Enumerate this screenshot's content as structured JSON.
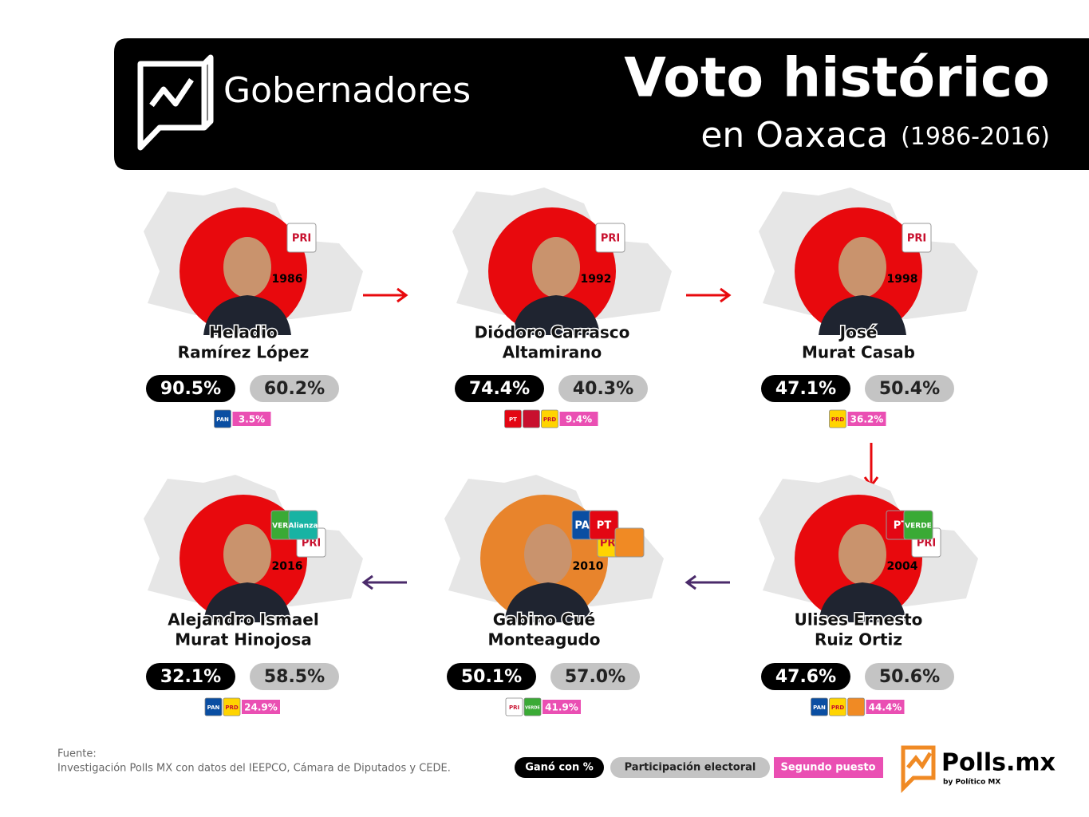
{
  "header": {
    "section": "Gobernadores",
    "title": "Voto histórico",
    "subtitle": "en Oaxaca",
    "period": "(1986-2016)"
  },
  "cards": [
    {
      "name": [
        "Heladio",
        "Ramírez López"
      ],
      "year": "1986",
      "winner_pct": "90.5%",
      "turnout_pct": "60.2%",
      "second_pct": "3.5%",
      "circle_color": "#e8090d",
      "parties": [
        {
          "label": "PRI",
          "color": "#ffffff"
        }
      ],
      "second_parties": [
        {
          "label": "PAN",
          "color": "#0a4ea2"
        }
      ]
    },
    {
      "name": [
        "Diódoro Carrasco",
        "Altamirano"
      ],
      "year": "1992",
      "winner_pct": "74.4%",
      "turnout_pct": "40.3%",
      "second_pct": "9.4%",
      "circle_color": "#e8090d",
      "parties": [
        {
          "label": "PRI",
          "color": "#ffffff"
        }
      ],
      "second_parties": [
        {
          "label": "PT",
          "color": "#e30613"
        },
        {
          "color": "#c8102e"
        },
        {
          "label": "PRD",
          "color": "#ffd400"
        }
      ]
    },
    {
      "name": [
        "José",
        "Murat Casab"
      ],
      "year": "1998",
      "winner_pct": "47.1%",
      "turnout_pct": "50.4%",
      "second_pct": "36.2%",
      "circle_color": "#e8090d",
      "parties": [
        {
          "label": "PRI",
          "color": "#ffffff"
        }
      ],
      "second_parties": [
        {
          "label": "PRD",
          "color": "#ffd400"
        }
      ]
    },
    {
      "name": [
        "Ulises Ernesto",
        "Ruiz Ortiz"
      ],
      "year": "2004",
      "winner_pct": "47.6%",
      "turnout_pct": "50.6%",
      "second_pct": "44.4%",
      "circle_color": "#e8090d",
      "parties": [
        {
          "label": "PT",
          "color": "#e30613"
        },
        {
          "label": "PRI",
          "color": "#ffffff"
        },
        {
          "label": "VERDE",
          "color": "#3aaa35"
        }
      ],
      "second_parties": [
        {
          "label": "PAN",
          "color": "#0a4ea2"
        },
        {
          "label": "PRD",
          "color": "#ffd400"
        },
        {
          "color": "#f08a24"
        }
      ]
    },
    {
      "name": [
        "Gabino Cué",
        "Monteagudo"
      ],
      "year": "2010",
      "winner_pct": "50.1%",
      "turnout_pct": "57.0%",
      "second_pct": "41.9%",
      "circle_color": "#e8842c",
      "parties": [
        {
          "label": "PAN",
          "color": "#0a4ea2"
        },
        {
          "label": "PRD",
          "color": "#ffd400"
        },
        {
          "label": "PT",
          "color": "#e30613"
        },
        {
          "color": "#f08a24"
        }
      ],
      "second_parties": [
        {
          "label": "PRI",
          "color": "#ffffff"
        },
        {
          "label": "VERDE",
          "color": "#3aaa35"
        }
      ]
    },
    {
      "name": [
        "Alejandro Ismael",
        "Murat Hinojosa"
      ],
      "year": "2016",
      "winner_pct": "32.1%",
      "turnout_pct": "58.5%",
      "second_pct": "24.9%",
      "circle_color": "#e8090d",
      "parties": [
        {
          "label": "VERDE",
          "color": "#3aaa35"
        },
        {
          "label": "PRI",
          "color": "#ffffff"
        },
        {
          "label": "Alianza",
          "color": "#17b3a3"
        }
      ],
      "second_parties": [
        {
          "label": "PAN",
          "color": "#0a4ea2"
        },
        {
          "label": "PRD",
          "color": "#ffd400"
        }
      ]
    }
  ],
  "legend": {
    "winner": "Ganó con %",
    "turnout": "Participación electoral",
    "second": "Segundo puesto"
  },
  "source": {
    "label": "Fuente:",
    "text": "Investigación Polls MX con datos del IEEPCO, Cámara de Diputados y CEDE."
  },
  "brand": {
    "name": "Polls.mx",
    "by": "by Político MX"
  }
}
